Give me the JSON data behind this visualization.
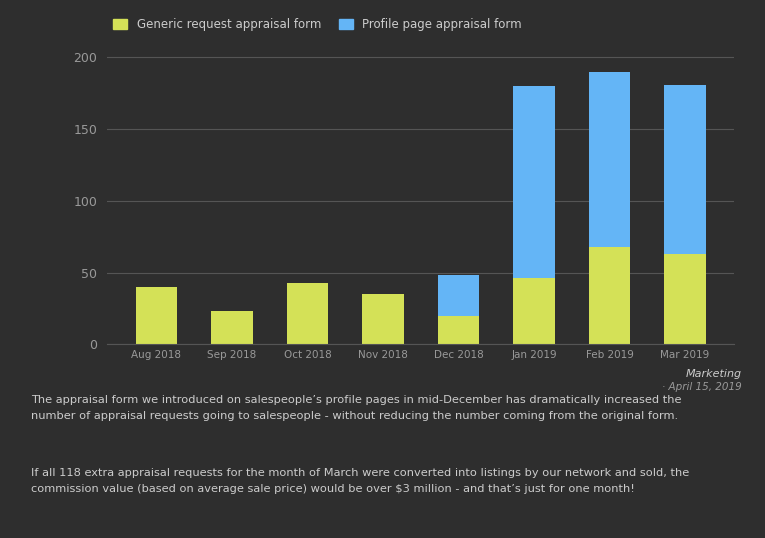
{
  "categories": [
    "Aug 2018",
    "Sep 2018",
    "Oct 2018",
    "Nov 2018",
    "Dec 2018",
    "Jan 2019",
    "Feb 2019",
    "Mar 2019"
  ],
  "generic_values": [
    40,
    23,
    43,
    35,
    20,
    46,
    68,
    63
  ],
  "profile_values": [
    0,
    0,
    0,
    0,
    28,
    134,
    122,
    118
  ],
  "generic_color": "#d4e157",
  "profile_color": "#64b5f6",
  "background_color": "#2e2e2e",
  "plot_bg_color": "#2e2e2e",
  "grid_color": "#555555",
  "text_color": "#cccccc",
  "tick_color": "#999999",
  "legend_label_generic": "Generic request appraisal form",
  "legend_label_profile": "Profile page appraisal form",
  "ylim": [
    0,
    210
  ],
  "yticks": [
    0,
    50,
    100,
    150,
    200
  ],
  "subtitle": "Marketing",
  "date_label": "· April 15, 2019",
  "annotation1": "The appraisal form we introduced on salespeople’s profile pages in mid-December has dramatically increased the\nnumber of appraisal requests going to salespeople - without reducing the number coming from the original form.",
  "annotation2": "If all 118 extra appraisal requests for the month of March were converted into listings by our network and sold, the\ncommission value (based on average sale price) would be over $3 million - and that’s just for one month!",
  "figsize": [
    7.65,
    5.38
  ],
  "dpi": 100
}
